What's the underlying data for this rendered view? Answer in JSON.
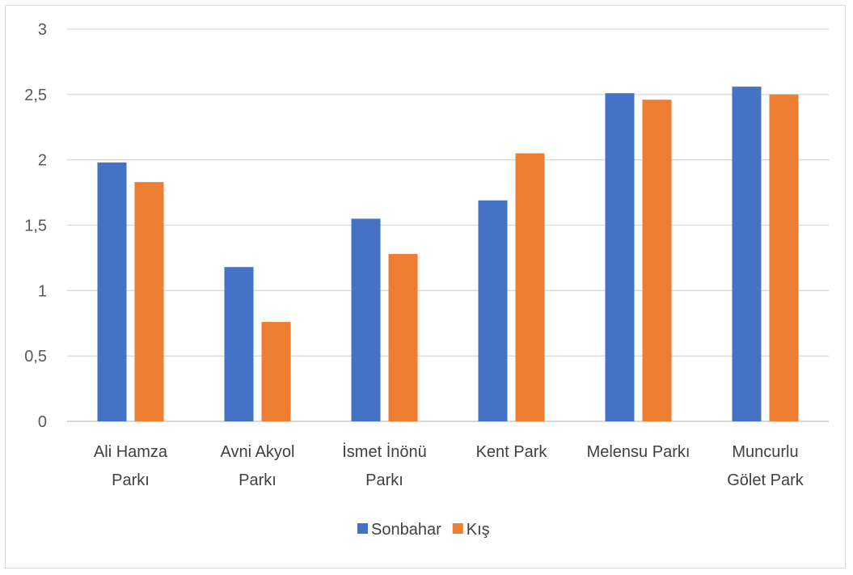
{
  "chart_data": {
    "type": "bar",
    "categories": [
      [
        "Ali Hamza",
        "Parkı"
      ],
      [
        "Avni Akyol",
        "Parkı"
      ],
      [
        "İsmet İnönü",
        "Parkı"
      ],
      [
        "Kent Park"
      ],
      [
        "Melensu Parkı"
      ],
      [
        "Muncurlu",
        "Gölet Park"
      ]
    ],
    "series": [
      {
        "name": "Sonbahar",
        "color": "#4472C4",
        "values": [
          1.98,
          1.18,
          1.55,
          1.69,
          2.51,
          2.56
        ]
      },
      {
        "name": "Kış",
        "color": "#ED7D31",
        "values": [
          1.83,
          0.76,
          1.28,
          2.05,
          2.46,
          2.5
        ]
      }
    ],
    "ylim": [
      0,
      3
    ],
    "yticks": [
      "0",
      "0,5",
      "1",
      "1,5",
      "2",
      "2,5",
      "3"
    ],
    "grid": true,
    "legend_position": "bottom"
  }
}
